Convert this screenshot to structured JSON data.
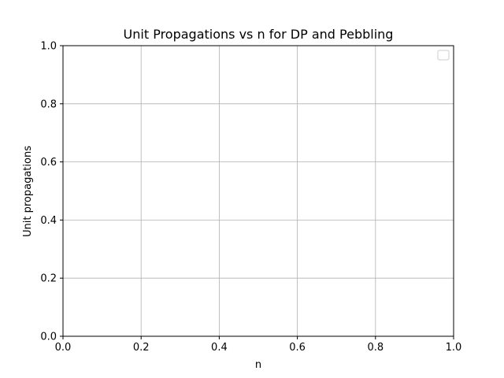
{
  "chart_data": {
    "type": "line",
    "title": "Unit Propagations vs n for DP and Pebbling",
    "xlabel": "n",
    "ylabel": "Unit propagations",
    "xlim": [
      0.0,
      1.0
    ],
    "ylim": [
      0.0,
      1.0
    ],
    "x_ticks": [
      "0.0",
      "0.2",
      "0.4",
      "0.6",
      "0.8",
      "1.0"
    ],
    "y_ticks": [
      "0.0",
      "0.2",
      "0.4",
      "0.6",
      "0.8",
      "1.0"
    ],
    "grid": true,
    "legend": {
      "placement": "top-right",
      "entries": []
    },
    "series": []
  },
  "colors": {
    "grid": "#b0b0b0",
    "axes": "#000000",
    "legend_border": "#cccccc"
  }
}
